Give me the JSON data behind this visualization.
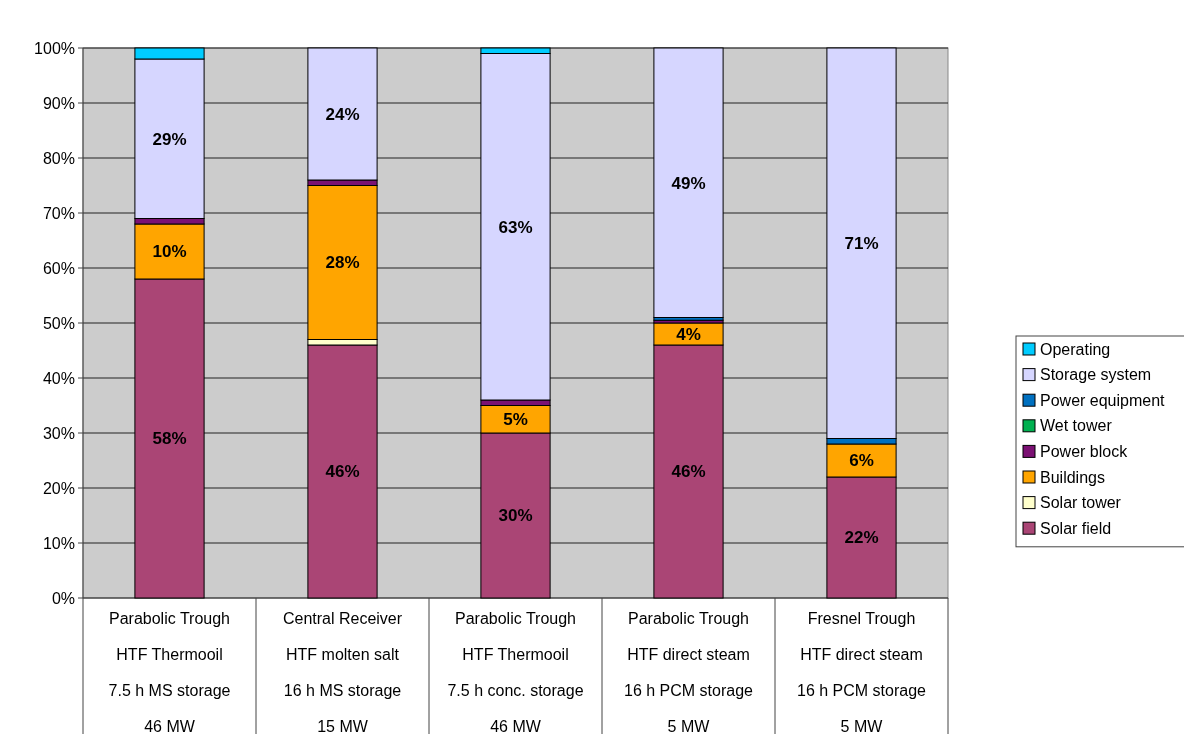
{
  "chart_data": {
    "type": "bar",
    "stacked": true,
    "categories": [
      "Parabolic Trough\nHTF Thermooil\n7.5 h MS storage\n46 MW",
      "Central Receiver\nHTF molten salt\n16 h MS storage\n15 MW",
      "Parabolic Trough\nHTF Thermooil\n7.5 h conc. storage\n46 MW",
      "Parabolic Trough\nHTF direct steam\n16 h PCM storage\n5 MW",
      "Fresnel Trough\nHTF direct steam\n16 h PCM storage\n5 MW"
    ],
    "series": [
      {
        "name": "Solar field",
        "color": "#aa4575",
        "values": [
          58,
          46,
          30,
          46,
          22
        ],
        "value_labels": [
          "58%",
          "46%",
          "30%",
          "46%",
          "22%"
        ]
      },
      {
        "name": "Solar tower",
        "color": "#ffffcc",
        "values": [
          0,
          1,
          0,
          0,
          0
        ]
      },
      {
        "name": "Buildings",
        "color": "#ffa500",
        "values": [
          10,
          28,
          5,
          4,
          6
        ],
        "value_labels": [
          "10%",
          "28%",
          "5%",
          "4%",
          "6%"
        ]
      },
      {
        "name": "Power block",
        "color": "#7b1173",
        "values": [
          1,
          1,
          1,
          0.5,
          0
        ]
      },
      {
        "name": "Wet tower",
        "color": "#00b050",
        "values": [
          0,
          0,
          0,
          0,
          0
        ]
      },
      {
        "name": "Power equipment",
        "color": "#0070c0",
        "values": [
          0,
          0,
          0,
          0.5,
          1
        ]
      },
      {
        "name": "Storage system",
        "color": "#d6d6ff",
        "values": [
          29,
          24,
          63,
          49,
          71
        ],
        "value_labels": [
          "29%",
          "24%",
          "63%",
          "49%",
          "71%"
        ]
      },
      {
        "name": "Operating",
        "color": "#00ccff",
        "values": [
          2,
          0,
          1,
          0,
          0
        ]
      }
    ],
    "ylim": [
      0,
      100
    ],
    "yticks": [
      {
        "value": 0,
        "label": "0%"
      },
      {
        "value": 10,
        "label": "10%"
      },
      {
        "value": 20,
        "label": "20%"
      },
      {
        "value": 30,
        "label": "30%"
      },
      {
        "value": 40,
        "label": "40%"
      },
      {
        "value": 50,
        "label": "50%"
      },
      {
        "value": 60,
        "label": "60%"
      },
      {
        "value": 70,
        "label": "70%"
      },
      {
        "value": 80,
        "label": "80%"
      },
      {
        "value": 90,
        "label": "90%"
      },
      {
        "value": 100,
        "label": "100%"
      }
    ],
    "grid": true,
    "legend": "right"
  }
}
